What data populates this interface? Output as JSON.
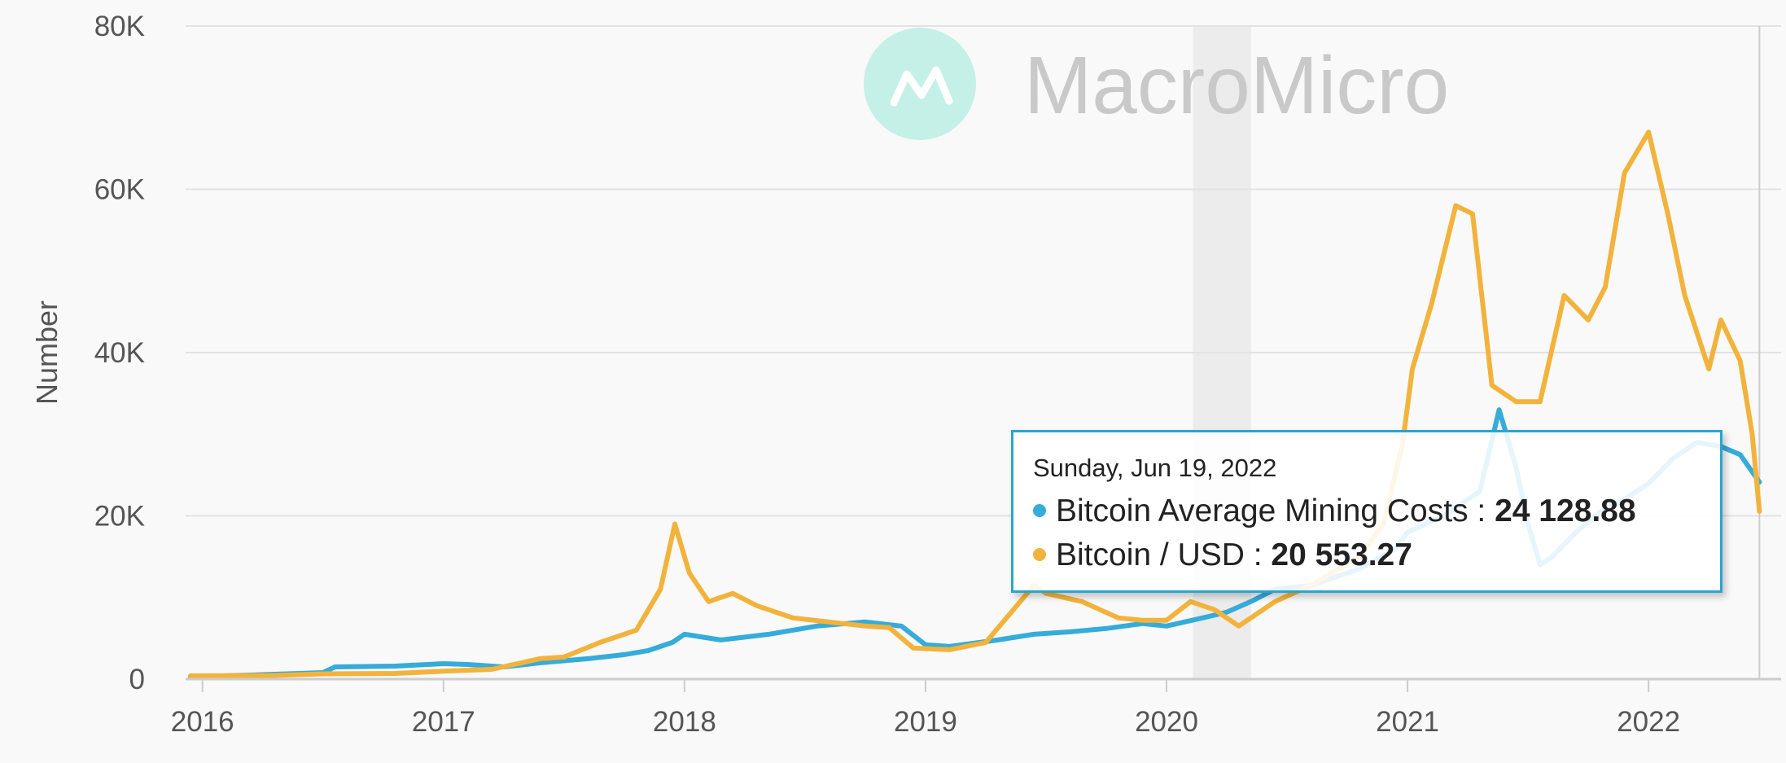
{
  "watermark": {
    "brand": "MacroMicro"
  },
  "tooltip": {
    "date": "Sunday, Jun 19, 2022",
    "rows": [
      {
        "name": "Bitcoin Average Mining Costs",
        "value": "24 128.88",
        "color": "#35acd9"
      },
      {
        "name": "Bitcoin / USD",
        "value": "20 553.27",
        "color": "#f2b33d"
      }
    ]
  },
  "chart_data": {
    "type": "line",
    "title": "",
    "xlabel": "",
    "ylabel": "Number",
    "ylim": [
      0,
      80000
    ],
    "xlim": [
      2015.93,
      2022.55
    ],
    "y_ticks": [
      0,
      20000,
      40000,
      60000,
      80000
    ],
    "y_tick_labels": [
      "0",
      "20K",
      "40K",
      "60K",
      "80K"
    ],
    "x_ticks": [
      2016,
      2017,
      2018,
      2019,
      2020,
      2021,
      2022
    ],
    "x_tick_labels": [
      "2016",
      "2017",
      "2018",
      "2019",
      "2020",
      "2021",
      "2022"
    ],
    "grid": "horizontal",
    "highlight_band": [
      2020.11,
      2020.35
    ],
    "crosshair_x": 2022.46,
    "colors": {
      "mining": "#35acd9",
      "price": "#f2b33d"
    },
    "series": [
      {
        "name": "Bitcoin Average Mining Costs",
        "x": [
          2015.95,
          2016.2,
          2016.5,
          2016.55,
          2016.8,
          2017.0,
          2017.1,
          2017.25,
          2017.4,
          2017.6,
          2017.75,
          2017.85,
          2017.95,
          2018.0,
          2018.15,
          2018.35,
          2018.55,
          2018.75,
          2018.9,
          2019.0,
          2019.1,
          2019.3,
          2019.45,
          2019.6,
          2019.75,
          2019.9,
          2020.0,
          2020.15,
          2020.25,
          2020.35,
          2020.45,
          2020.6,
          2020.8,
          2020.95,
          2021.0,
          2021.15,
          2021.3,
          2021.38,
          2021.45,
          2021.5,
          2021.55,
          2021.6,
          2021.7,
          2021.8,
          2021.9,
          2022.0,
          2022.1,
          2022.2,
          2022.3,
          2022.38,
          2022.46
        ],
        "y": [
          300,
          500,
          800,
          1500,
          1600,
          1900,
          1800,
          1500,
          2000,
          2500,
          3000,
          3500,
          4500,
          5500,
          4800,
          5500,
          6500,
          7000,
          6500,
          4200,
          4000,
          4800,
          5500,
          5800,
          6200,
          6800,
          6500,
          7500,
          8200,
          9500,
          11000,
          11500,
          13500,
          16000,
          18000,
          20000,
          23000,
          33000,
          26000,
          19000,
          14000,
          15000,
          18000,
          20500,
          22000,
          24000,
          27000,
          29000,
          28500,
          27500,
          24128.88
        ]
      },
      {
        "name": "Bitcoin / USD",
        "x": [
          2015.95,
          2016.3,
          2016.5,
          2016.8,
          2017.0,
          2017.2,
          2017.4,
          2017.5,
          2017.65,
          2017.8,
          2017.9,
          2017.96,
          2018.02,
          2018.1,
          2018.2,
          2018.3,
          2018.45,
          2018.6,
          2018.75,
          2018.85,
          2018.95,
          2019.1,
          2019.25,
          2019.35,
          2019.45,
          2019.5,
          2019.65,
          2019.8,
          2019.9,
          2020.0,
          2020.1,
          2020.2,
          2020.3,
          2020.45,
          2020.6,
          2020.8,
          2020.9,
          2020.98,
          2021.02,
          2021.1,
          2021.2,
          2021.27,
          2021.35,
          2021.45,
          2021.55,
          2021.65,
          2021.75,
          2021.82,
          2021.9,
          2022.0,
          2022.08,
          2022.15,
          2022.25,
          2022.3,
          2022.38,
          2022.43,
          2022.46
        ],
        "y": [
          400,
          450,
          650,
          700,
          980,
          1200,
          2500,
          2700,
          4500,
          6000,
          11000,
          19000,
          13000,
          9500,
          10500,
          9000,
          7500,
          7000,
          6500,
          6300,
          3800,
          3600,
          4500,
          8000,
          11500,
          10500,
          9500,
          7500,
          7200,
          7200,
          9500,
          8500,
          6500,
          9500,
          11500,
          15000,
          19000,
          29000,
          38000,
          46000,
          58000,
          57000,
          36000,
          34000,
          34000,
          47000,
          44000,
          48000,
          62000,
          67000,
          57000,
          47000,
          38000,
          44000,
          39000,
          30000,
          20553.27
        ]
      }
    ]
  }
}
